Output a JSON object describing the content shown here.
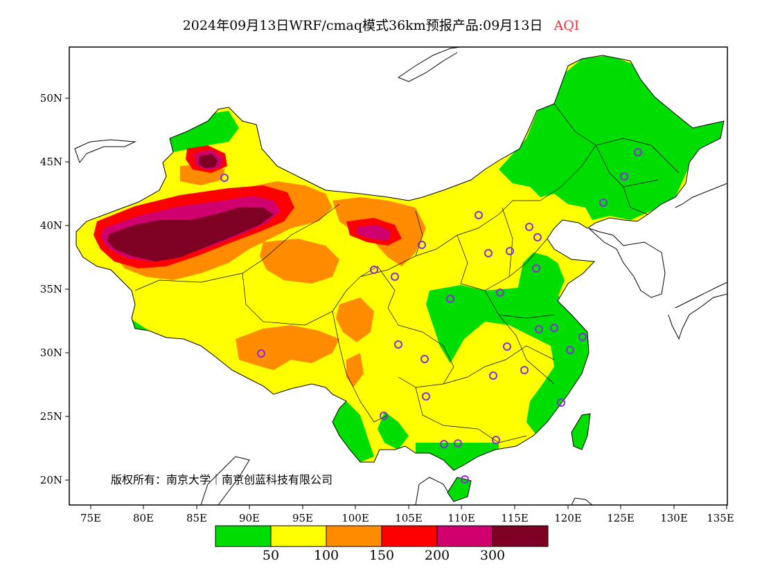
{
  "title": {
    "main": "2024年09月13日WRF/cmaq模式36km预报产品:09月13日",
    "variable": "AQI"
  },
  "axes": {
    "lat_labels": [
      "50N",
      "45N",
      "40N",
      "35N",
      "30N",
      "25N",
      "20N"
    ],
    "lon_labels": [
      "75E",
      "80E",
      "85E",
      "90E",
      "95E",
      "100E",
      "105E",
      "110E",
      "115E",
      "120E",
      "125E",
      "130E",
      "135E"
    ]
  },
  "copyright": "版权所有：南京大学｜南京创蓝科技有限公司",
  "legend": {
    "colors": [
      "#00dd00",
      "#ffff00",
      "#ff8c00",
      "#ff0000",
      "#d0006f",
      "#7e0023"
    ],
    "thresholds": [
      "50",
      "100",
      "150",
      "200",
      "300"
    ]
  },
  "colors": {
    "good": "#00dd00",
    "moderate": "#ffff00",
    "sensitive": "#ff8c00",
    "unhealthy": "#ff0000",
    "very_unhealthy": "#d0006f",
    "hazardous": "#7e0023",
    "station_marker": "#8a2be2"
  }
}
